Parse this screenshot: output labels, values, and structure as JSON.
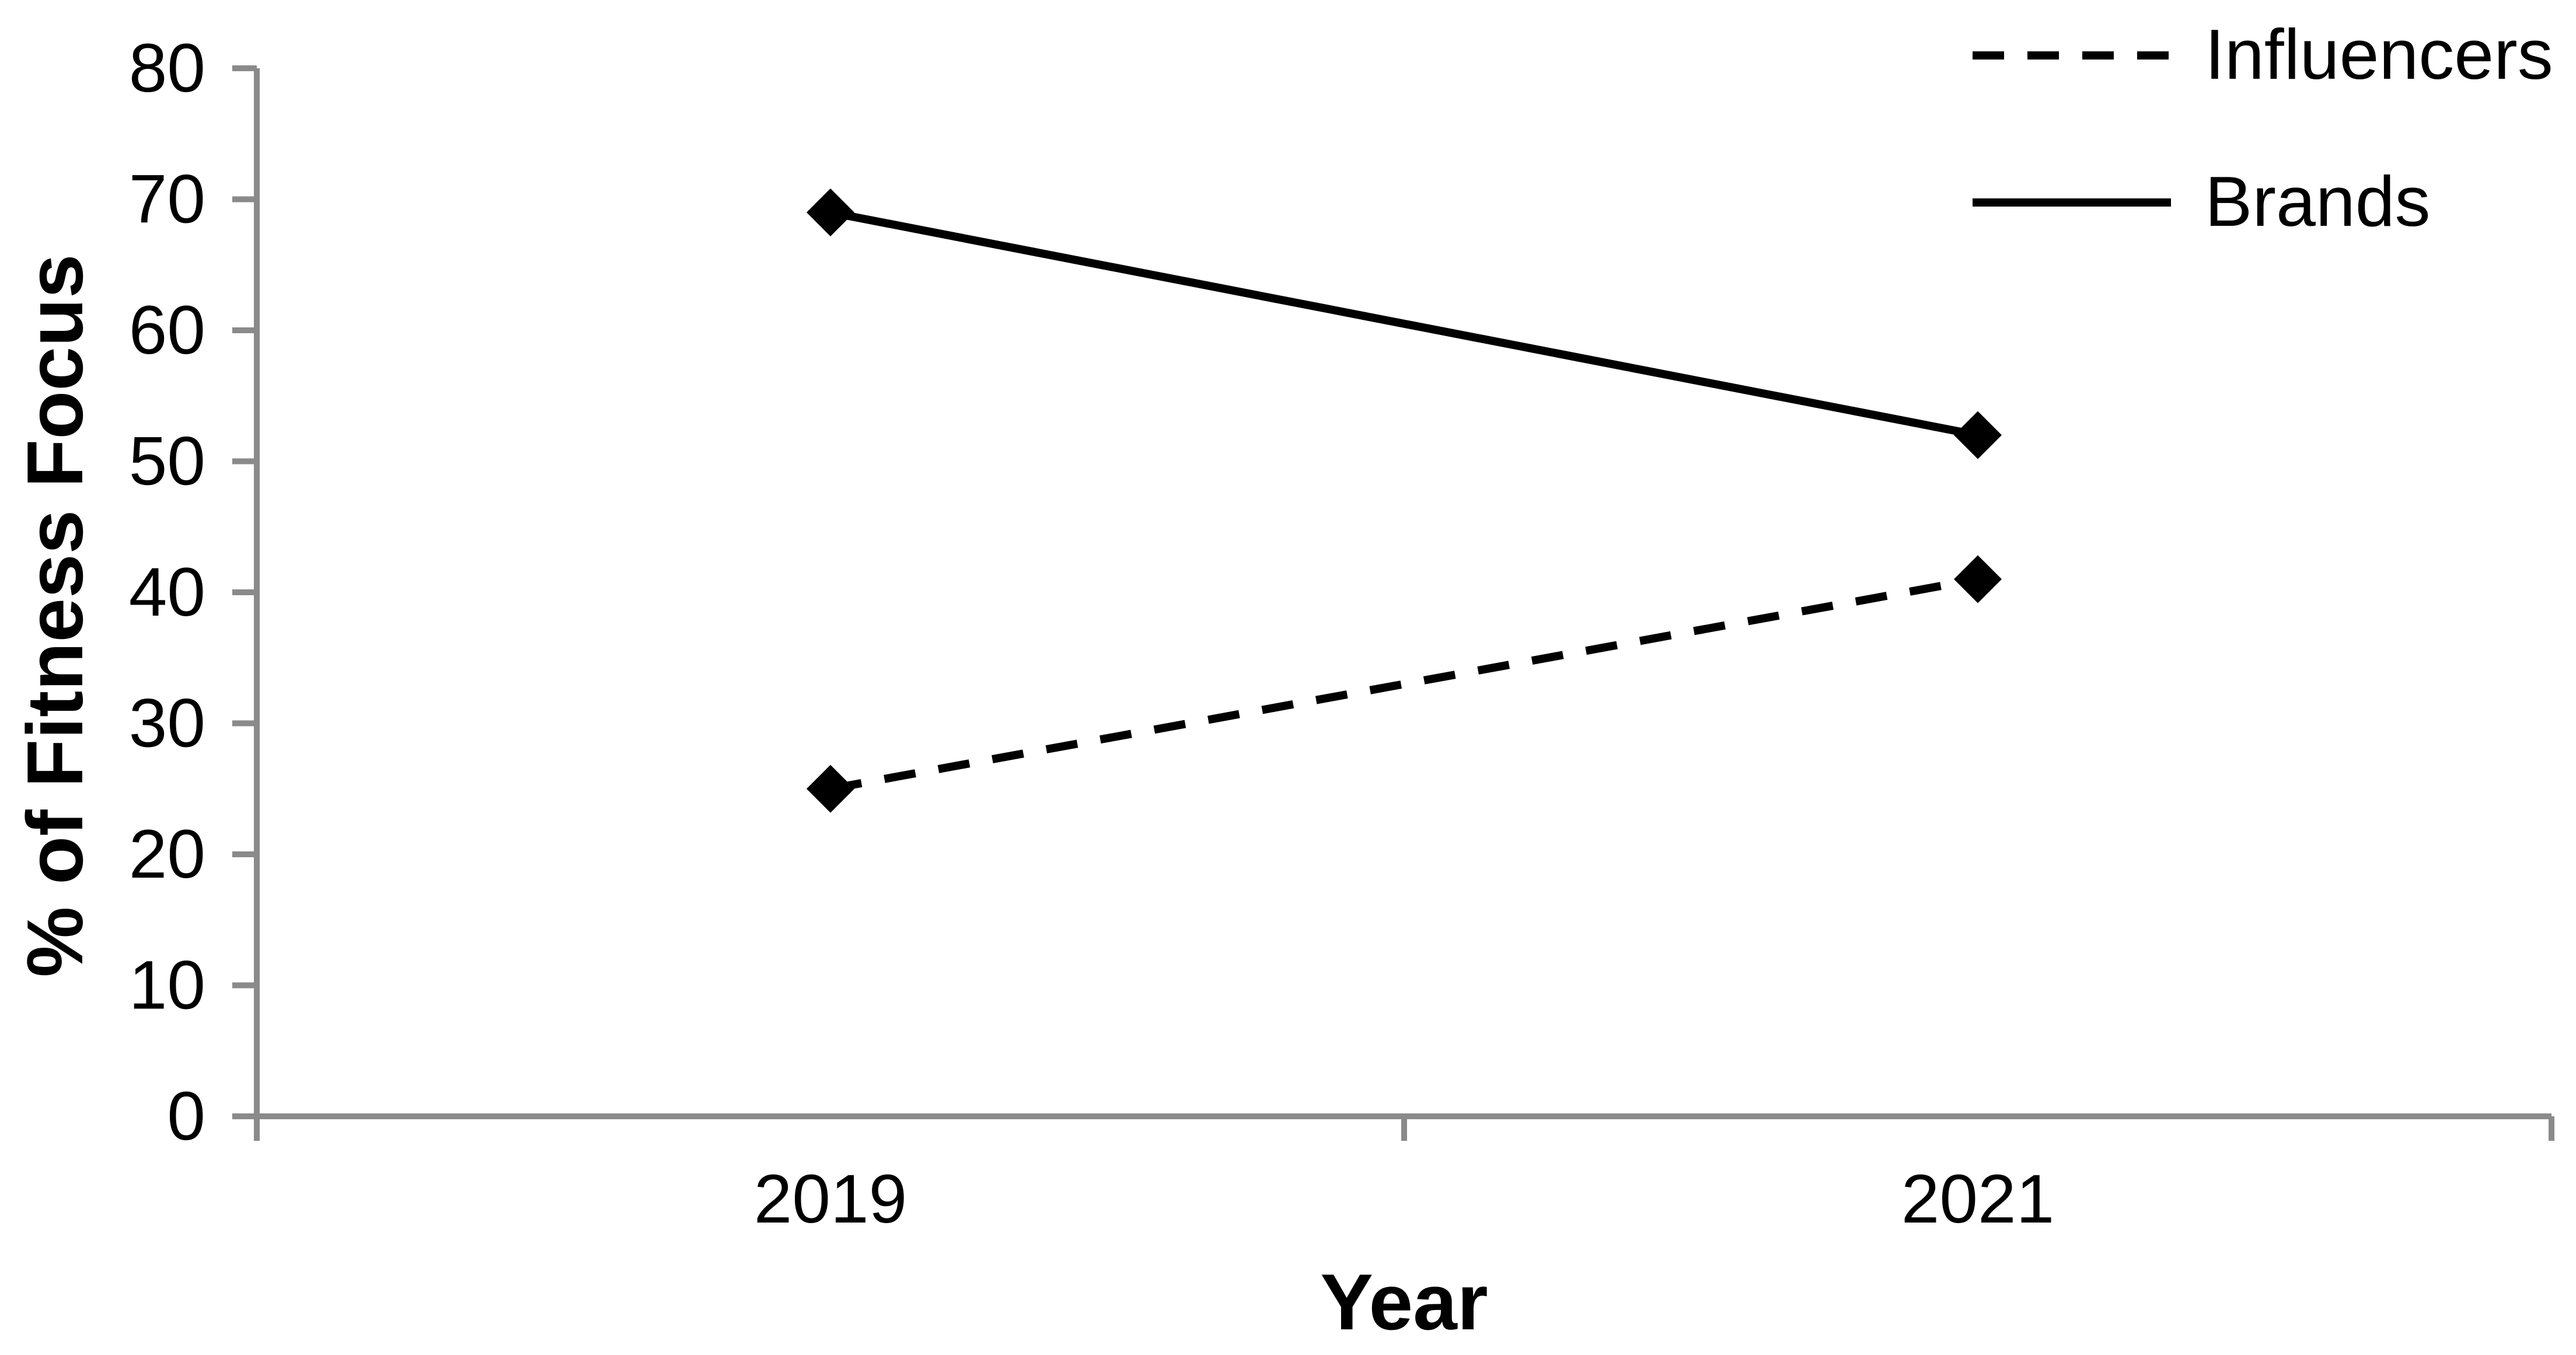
{
  "figure": {
    "background_color": "#FFFFFF",
    "axis_color": "#8A8A8A",
    "text_color": "#000000",
    "series_color": "#000000"
  },
  "chart_data": {
    "type": "line",
    "title": "",
    "xlabel": "Year",
    "ylabel": "% of Fitness Focus",
    "categories": [
      "2019",
      "2021"
    ],
    "series": [
      {
        "name": "Influencers",
        "values": [
          25,
          41
        ],
        "line_style": "dashed",
        "marker": "diamond",
        "color": "#000000"
      },
      {
        "name": "Brands",
        "values": [
          69,
          52
        ],
        "line_style": "solid",
        "marker": "diamond",
        "color": "#000000"
      }
    ],
    "ylim": [
      0,
      80
    ],
    "yticks": [
      0,
      10,
      20,
      30,
      40,
      50,
      60,
      70,
      80
    ],
    "ytick_labels": [
      "0",
      "10",
      "20",
      "30",
      "40",
      "50",
      "60",
      "70",
      "80"
    ],
    "grid": false,
    "legend_position": "top-right",
    "legend_entries": [
      "Influencers",
      "Brands"
    ]
  }
}
